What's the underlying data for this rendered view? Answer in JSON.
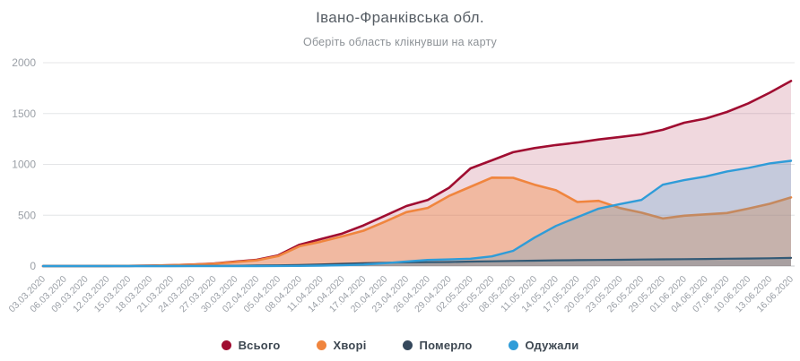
{
  "header": {
    "title": "Івано-Франківська обл.",
    "subtitle": "Оберіть область клікнувши на карту"
  },
  "chart_data": {
    "type": "area",
    "title": "Івано-Франківська обл.",
    "subtitle": "Оберіть область клікнувши на карту",
    "xlabel": "",
    "ylabel": "",
    "ylim": [
      0,
      2000
    ],
    "yticks": [
      0,
      500,
      1000,
      1500,
      2000
    ],
    "grid": true,
    "legend_position": "bottom",
    "colors": {
      "grid": "#e4e5e7",
      "axis": "#c9cbce",
      "tick_text": "#9a9fa6",
      "title": "#565d64",
      "subtitle": "#8d9297",
      "legend_text": "#3d4751"
    },
    "x": [
      "03.03.2020",
      "06.03.2020",
      "09.03.2020",
      "12.03.2020",
      "15.03.2020",
      "18.03.2020",
      "21.03.2020",
      "24.03.2020",
      "27.03.2020",
      "30.03.2020",
      "02.04.2020",
      "05.04.2020",
      "08.04.2020",
      "11.04.2020",
      "14.04.2020",
      "17.04.2020",
      "20.04.2020",
      "23.04.2020",
      "26.04.2020",
      "29.04.2020",
      "02.05.2020",
      "05.05.2020",
      "08.05.2020",
      "11.05.2020",
      "14.05.2020",
      "17.05.2020",
      "20.05.2020",
      "23.05.2020",
      "26.05.2020",
      "29.05.2020",
      "01.06.2020",
      "04.06.2020",
      "07.06.2020",
      "10.06.2020",
      "13.06.2020",
      "16.06.2020"
    ],
    "series": [
      {
        "key": "total",
        "name": "Всього",
        "color": "#a00d31",
        "fill": "rgba(161,13,51,0.16)",
        "line_width": 2.6,
        "values": [
          0,
          0,
          0,
          1,
          2,
          4,
          8,
          15,
          25,
          44,
          62,
          105,
          210,
          265,
          320,
          400,
          495,
          590,
          650,
          770,
          960,
          1040,
          1120,
          1160,
          1190,
          1215,
          1245,
          1270,
          1295,
          1340,
          1410,
          1450,
          1515,
          1600,
          1705,
          1820
        ]
      },
      {
        "key": "sick",
        "name": "Хворі",
        "color": "#f0853e",
        "fill": "rgba(243,134,63,0.38)",
        "line_width": 2.6,
        "values": [
          0,
          0,
          0,
          1,
          2,
          4,
          8,
          14,
          23,
          40,
          56,
          98,
          195,
          240,
          292,
          348,
          437,
          530,
          572,
          690,
          780,
          870,
          868,
          800,
          745,
          630,
          641,
          570,
          525,
          468,
          495,
          508,
          522,
          565,
          612,
          675
        ]
      },
      {
        "key": "died",
        "name": "Померло",
        "color": "#35485c",
        "fill": "rgba(53,72,92,0.20)",
        "line_width": 2.2,
        "values": [
          0,
          0,
          0,
          0,
          0,
          0,
          0,
          1,
          2,
          3,
          5,
          7,
          11,
          16,
          22,
          28,
          33,
          36,
          38,
          40,
          44,
          47,
          50,
          53,
          56,
          58,
          60,
          62,
          64,
          66,
          68,
          70,
          72,
          74,
          77,
          80
        ]
      },
      {
        "key": "recovered",
        "name": "Одужали",
        "color": "#2f9cd8",
        "fill": "rgba(47,156,216,0.22)",
        "line_width": 2.4,
        "values": [
          0,
          0,
          0,
          0,
          0,
          0,
          0,
          0,
          0,
          0,
          0,
          1,
          2,
          4,
          8,
          15,
          28,
          45,
          60,
          65,
          72,
          95,
          150,
          280,
          395,
          480,
          565,
          610,
          650,
          800,
          845,
          880,
          930,
          965,
          1010,
          1035
        ]
      }
    ]
  }
}
